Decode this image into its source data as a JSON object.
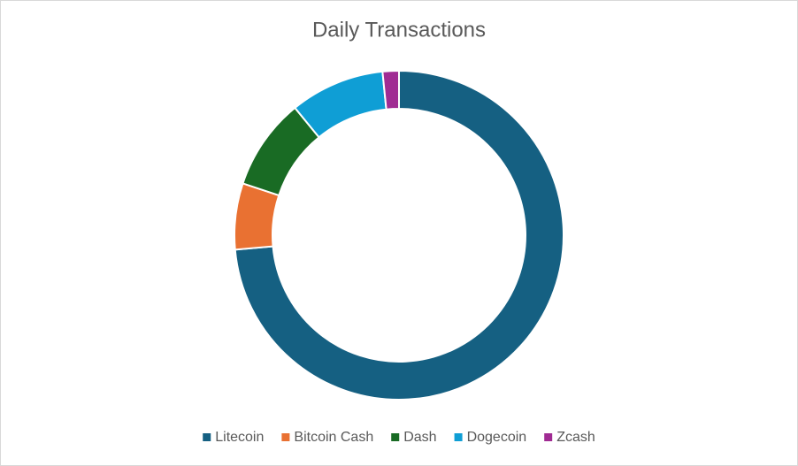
{
  "chart_data": {
    "type": "doughnut",
    "title": "Daily Transactions",
    "categories": [
      "Litecoin",
      "Bitcoin Cash",
      "Dash",
      "Dogecoin",
      "Zcash"
    ],
    "values": [
      73.6,
      6.5,
      9.0,
      9.3,
      1.6
    ],
    "colors": [
      "#156082",
      "#e97132",
      "#196b24",
      "#0f9ed5",
      "#a02b93"
    ],
    "legend": "bottom"
  }
}
